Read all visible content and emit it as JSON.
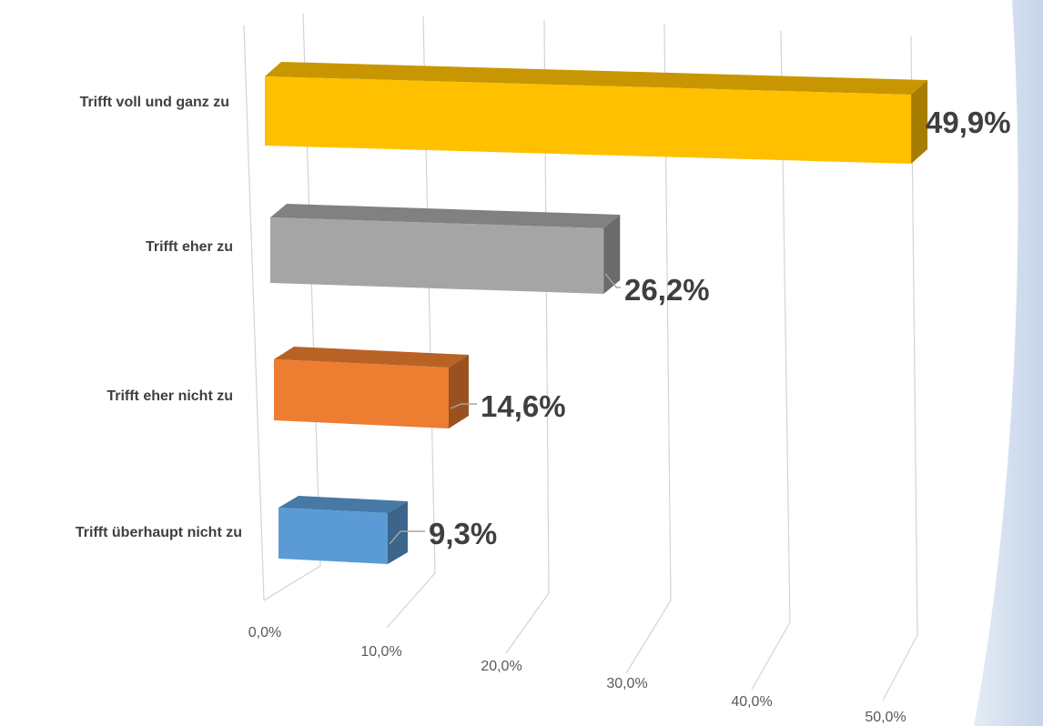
{
  "chart_data": {
    "type": "bar",
    "orientation": "horizontal",
    "style": "3d",
    "categories": [
      "Trifft voll und ganz zu",
      "Trifft eher zu",
      "Trifft eher nicht zu",
      "Trifft überhaupt nicht zu"
    ],
    "values": [
      49.9,
      26.2,
      14.6,
      9.3
    ],
    "data_labels": [
      "49,9%",
      "26,2%",
      "14,6%",
      "9,3%"
    ],
    "colors": [
      "#ffc000",
      "#a5a5a5",
      "#ed7d31",
      "#5b9bd5"
    ],
    "x_ticks": [
      "0,0%",
      "10,0%",
      "20,0%",
      "30,0%",
      "40,0%",
      "50,0%"
    ],
    "xlim": [
      0,
      50
    ],
    "title": "",
    "xlabel": "",
    "ylabel": "",
    "grid": true,
    "legend": "none"
  }
}
